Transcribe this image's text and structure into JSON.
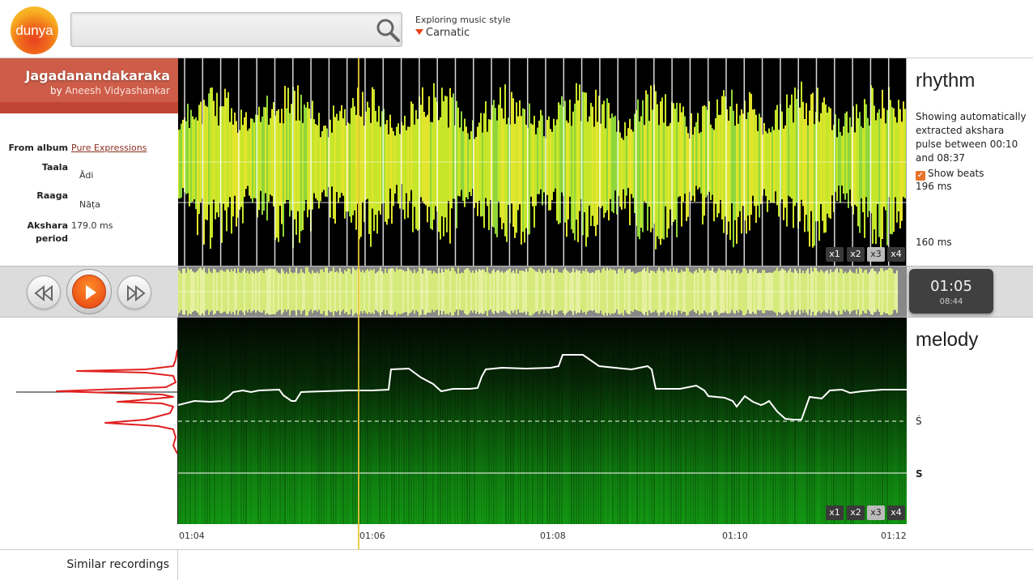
{
  "header": {
    "logo_text": "dunya",
    "search_placeholder": "",
    "search_icon": "search-icon",
    "style_label": "Exploring music style",
    "style_value": "Carnatic"
  },
  "recording": {
    "title": "Jagadanandakaraka",
    "by_prefix": "by",
    "artist": "Aneesh Vidyashankar"
  },
  "info": {
    "album_label": "From album",
    "album_value": "Pure Expressions",
    "taala_label": "Taala",
    "taala_value": "Ādi",
    "raaga_label": "Raaga",
    "raaga_value": "Nāṭa",
    "akshara_label": "Akshara period",
    "akshara_value": "179.0 ms"
  },
  "rhythm": {
    "title": "rhythm",
    "description": "Showing automatically extracted akshara pulse between 00:10 and 08:37",
    "show_beats_label": "Show beats",
    "show_beats_checked": true,
    "top_value": "196 ms",
    "bottom_value": "160 ms",
    "zoom_levels": [
      "x1",
      "x2",
      "x3",
      "x4"
    ],
    "zoom_active": "x3",
    "wave_color": "#c7e62a"
  },
  "transport": {
    "rewind_icon": "rewind-icon",
    "play_icon": "play-icon",
    "forward_icon": "fast-forward-icon",
    "current_time": "01:05",
    "total_time": "08:44"
  },
  "melody": {
    "title": "melody",
    "svara_upper": "Ṡ",
    "svara_lower": "S",
    "zoom_levels": [
      "x1",
      "x2",
      "x3",
      "x4"
    ],
    "zoom_active": "x3",
    "histogram_color": "#e0201f"
  },
  "timeline": {
    "ticks": [
      "01:04",
      "01:06",
      "01:08",
      "01:10",
      "01:12"
    ]
  },
  "footer": {
    "similar_label": "Similar recordings"
  },
  "colors": {
    "accent": "#e8411e",
    "banner": "#cd5c49",
    "cursor": "#e7c837"
  }
}
